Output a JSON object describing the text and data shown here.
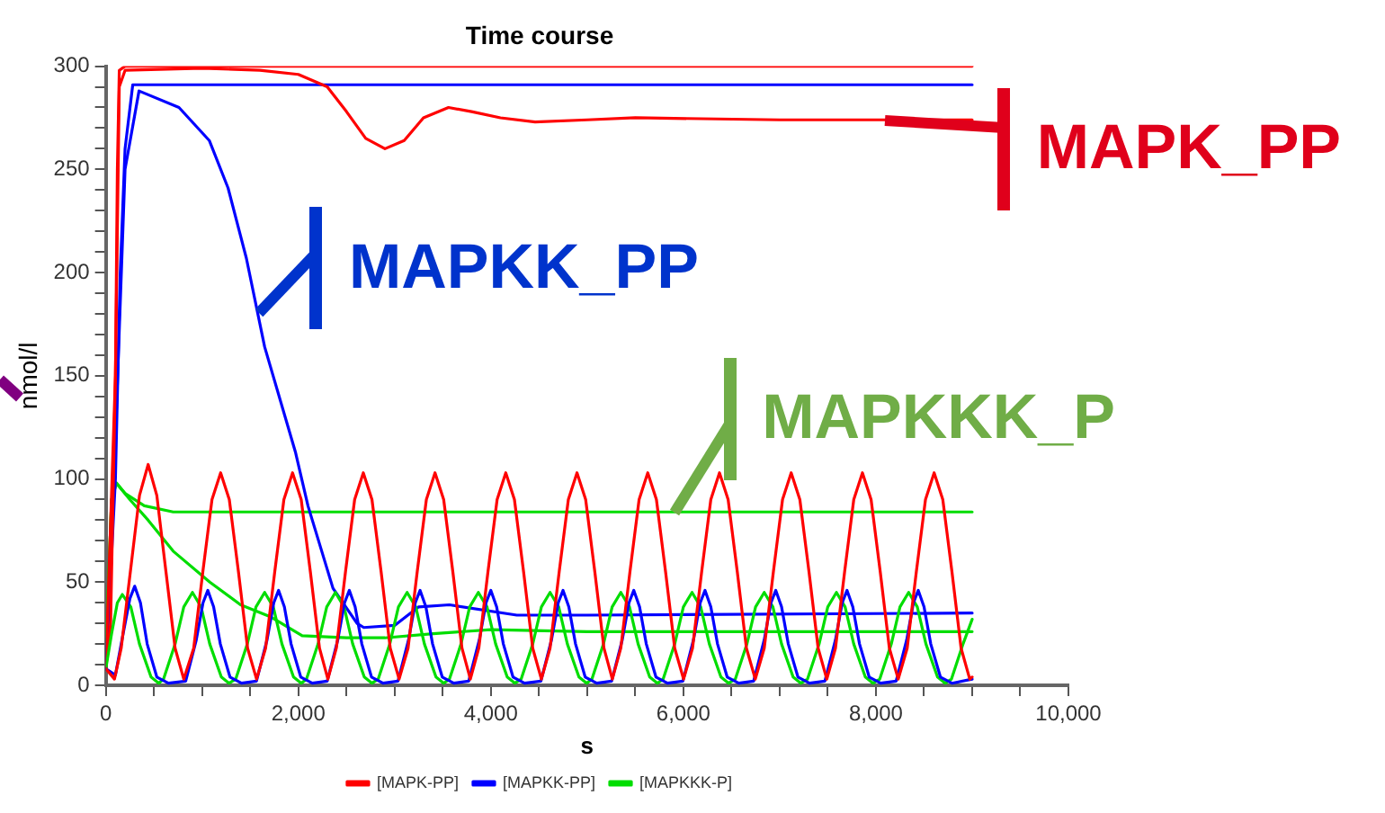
{
  "chart_data": {
    "type": "line",
    "title": "Time course",
    "xlabel": "s",
    "ylabel": "nmol/l",
    "xlim": [
      0,
      10000
    ],
    "xticks": [
      0,
      {
        "value": 500,
        "label": null
      },
      {
        "value": 1000,
        "label": null
      },
      {
        "value": 1500,
        "label": null
      },
      {
        "value": 2000,
        "label": "2,000"
      },
      {
        "value": 2500,
        "label": null
      },
      {
        "value": 3000,
        "label": null
      },
      {
        "value": 3500,
        "label": null
      },
      {
        "value": 4000,
        "label": "4,000"
      },
      {
        "value": 4500,
        "label": null
      },
      {
        "value": 5000,
        "label": null
      },
      {
        "value": 5500,
        "label": null
      },
      {
        "value": 6000,
        "label": "6,000"
      },
      {
        "value": 6500,
        "label": null
      },
      {
        "value": 7000,
        "label": null
      },
      {
        "value": 7500,
        "label": null
      },
      {
        "value": 8000,
        "label": "8,000"
      },
      {
        "value": 8500,
        "label": null
      },
      {
        "value": 9000,
        "label": null
      },
      {
        "value": 9500,
        "label": null
      },
      {
        "value": 10000,
        "label": "10,000"
      }
    ],
    "ylim": [
      0,
      300
    ],
    "yticks": [
      0,
      {
        "value": 10,
        "label": null
      },
      {
        "value": 20,
        "label": null
      },
      {
        "value": 30,
        "label": null
      },
      {
        "value": 40,
        "label": null
      },
      50,
      {
        "value": 60,
        "label": null
      },
      {
        "value": 70,
        "label": null
      },
      {
        "value": 80,
        "label": null
      },
      {
        "value": 90,
        "label": null
      },
      100,
      {
        "value": 110,
        "label": null
      },
      {
        "value": 120,
        "label": null
      },
      {
        "value": 130,
        "label": null
      },
      {
        "value": 140,
        "label": null
      },
      150,
      {
        "value": 160,
        "label": null
      },
      {
        "value": 170,
        "label": null
      },
      {
        "value": 180,
        "label": null
      },
      {
        "value": 190,
        "label": null
      },
      200,
      {
        "value": 210,
        "label": null
      },
      {
        "value": 220,
        "label": null
      },
      {
        "value": 230,
        "label": null
      },
      {
        "value": 240,
        "label": null
      },
      250,
      {
        "value": 260,
        "label": null
      },
      {
        "value": 270,
        "label": null
      },
      {
        "value": 280,
        "label": null
      },
      {
        "value": 290,
        "label": null
      },
      300
    ],
    "legend": "bottom",
    "marker": "none",
    "line_style": "solid",
    "annotations": [
      {
        "text": "MAPK_PP",
        "x": 8100,
        "y": 274
      },
      {
        "text": "MAPKK_PP",
        "x": 1600,
        "y": 180
      },
      {
        "text": "MAPKKK_P",
        "x": 5900,
        "y": 84
      }
    ],
    "series": [
      {
        "name": "[MAPK-PP]",
        "color": "#ff0000",
        "x": [
          0,
          90,
          160,
          255,
          350,
          440,
          530,
          625,
          720,
          810,
          913,
          1008,
          1103,
          1193,
          1283,
          1378,
          1473,
          1566,
          1660,
          1755,
          1850,
          1940,
          2030,
          2125,
          2220,
          2307,
          2395,
          2490,
          2585,
          2675,
          2765,
          2860,
          2955,
          3047,
          3140,
          3235,
          3330,
          3420,
          3510,
          3605,
          3700,
          3787,
          3875,
          3970,
          4065,
          4155,
          4245,
          4340,
          4435,
          4525,
          4615,
          4710,
          4805,
          4895,
          4985,
          5080,
          5175,
          5262,
          5350,
          5445,
          5540,
          5630,
          5720,
          5815,
          5910,
          6002,
          6095,
          6190,
          6285,
          6375,
          6465,
          6560,
          6655,
          6747,
          6840,
          6935,
          7030,
          7120,
          7210,
          7305,
          7400,
          7490,
          7580,
          7675,
          7770,
          7860,
          7950,
          8045,
          8140,
          8232,
          8325,
          8420,
          8515,
          8605,
          8695,
          8790,
          8885,
          8975,
          9000
        ],
        "values": [
          8,
          3,
          18,
          55,
          92,
          107,
          92,
          55,
          18,
          3,
          18,
          55,
          90,
          103,
          90,
          55,
          18,
          3,
          18,
          55,
          90,
          103,
          90,
          55,
          18,
          3,
          18,
          55,
          90,
          103,
          90,
          55,
          18,
          3,
          18,
          55,
          90,
          103,
          90,
          55,
          18,
          3,
          18,
          55,
          90,
          103,
          90,
          55,
          18,
          3,
          18,
          55,
          90,
          103,
          90,
          55,
          18,
          3,
          18,
          55,
          90,
          103,
          90,
          55,
          18,
          3,
          18,
          55,
          90,
          103,
          90,
          55,
          18,
          3,
          18,
          55,
          90,
          103,
          90,
          55,
          18,
          3,
          18,
          55,
          90,
          103,
          90,
          55,
          18,
          3,
          18,
          55,
          90,
          103,
          90,
          55,
          18,
          3,
          4
        ]
      },
      {
        "name": "[MAPKK-PP]",
        "color": "#0000ff",
        "x": [
          0,
          100,
          180,
          250,
          300,
          360,
          430,
          530,
          650,
          830,
          940,
          1010,
          1060,
          1120,
          1190,
          1290,
          1410,
          1565,
          1675,
          1745,
          1795,
          1855,
          1925,
          2025,
          2145,
          2300,
          2410,
          2480,
          2530,
          2590,
          2660,
          2760,
          2880,
          3035,
          3145,
          3215,
          3265,
          3325,
          3395,
          3495,
          3615,
          3770,
          3880,
          3950,
          4000,
          4060,
          4130,
          4230,
          4350,
          4520,
          4630,
          4700,
          4750,
          4810,
          4880,
          4980,
          5100,
          5255,
          5365,
          5435,
          5485,
          5545,
          5615,
          5715,
          5835,
          5995,
          6105,
          6175,
          6225,
          6285,
          6355,
          6455,
          6575,
          6730,
          6840,
          6910,
          6960,
          7020,
          7090,
          7190,
          7310,
          7470,
          7580,
          7650,
          7700,
          7760,
          7830,
          7930,
          8050,
          8210,
          8320,
          8390,
          8440,
          8500,
          8570,
          8670,
          8790,
          9000
        ],
        "values": [
          8,
          5,
          25,
          42,
          48,
          40,
          20,
          4,
          1,
          2,
          22,
          40,
          46,
          38,
          20,
          4,
          1,
          2,
          22,
          40,
          46,
          38,
          20,
          4,
          1,
          2,
          22,
          40,
          46,
          38,
          20,
          4,
          1,
          2,
          22,
          40,
          46,
          38,
          20,
          4,
          1,
          2,
          22,
          40,
          46,
          38,
          20,
          4,
          1,
          2,
          22,
          40,
          46,
          38,
          20,
          4,
          1,
          2,
          22,
          40,
          46,
          38,
          20,
          4,
          1,
          2,
          22,
          40,
          46,
          38,
          20,
          4,
          1,
          2,
          22,
          40,
          46,
          38,
          20,
          4,
          1,
          2,
          22,
          40,
          46,
          38,
          20,
          4,
          1,
          2,
          22,
          40,
          46,
          38,
          20,
          4,
          1,
          3
        ]
      },
      {
        "name": "[MAPKKK-P]",
        "color": "#00dd00",
        "x": [
          0,
          60,
          120,
          172,
          260,
          350,
          470,
          550,
          600,
          720,
          810,
          900,
          990,
          1080,
          1200,
          1280,
          1350,
          1470,
          1560,
          1650,
          1740,
          1830,
          1950,
          2030,
          2085,
          2205,
          2295,
          2385,
          2475,
          2565,
          2685,
          2765,
          2830,
          2950,
          3040,
          3130,
          3220,
          3310,
          3430,
          3510,
          3570,
          3690,
          3780,
          3870,
          3960,
          4050,
          4170,
          4250,
          4315,
          4435,
          4525,
          4615,
          4705,
          4795,
          4915,
          4995,
          5050,
          5170,
          5260,
          5350,
          5440,
          5530,
          5650,
          5730,
          5790,
          5910,
          6000,
          6090,
          6180,
          6270,
          6390,
          6470,
          6540,
          6660,
          6750,
          6840,
          6930,
          7020,
          7140,
          7220,
          7290,
          7410,
          7500,
          7590,
          7680,
          7770,
          7890,
          7970,
          8040,
          8160,
          8250,
          8340,
          8430,
          8520,
          8640,
          8720,
          8785,
          8905,
          9000
        ],
        "values": [
          8,
          25,
          40,
          44,
          38,
          20,
          4,
          1,
          3,
          20,
          38,
          45,
          38,
          20,
          4,
          1,
          3,
          20,
          38,
          45,
          38,
          20,
          4,
          1,
          3,
          20,
          38,
          45,
          38,
          20,
          4,
          1,
          3,
          20,
          38,
          45,
          38,
          20,
          4,
          1,
          3,
          20,
          38,
          45,
          38,
          20,
          4,
          1,
          3,
          20,
          38,
          45,
          38,
          20,
          4,
          1,
          3,
          20,
          38,
          45,
          38,
          20,
          4,
          1,
          3,
          20,
          38,
          45,
          38,
          20,
          4,
          1,
          3,
          20,
          38,
          45,
          38,
          20,
          4,
          1,
          3,
          20,
          38,
          45,
          38,
          20,
          4,
          1,
          3,
          20,
          38,
          45,
          38,
          20,
          4,
          1,
          3,
          20,
          32
        ]
      },
      {
        "color": "#ff0000",
        "x": [
          0,
          50,
          100,
          120,
          140,
          200,
          9000
        ],
        "values": [
          8,
          30,
          150,
          250,
          298,
          300,
          300
        ]
      },
      {
        "color": "#ff0000",
        "x": [
          0,
          100,
          140,
          200,
          1000,
          1600,
          2000,
          2300,
          2500,
          2700,
          2900,
          3100,
          3300,
          3560,
          3800,
          4100,
          4460,
          5000,
          5500,
          7000,
          9000
        ],
        "values": [
          8,
          150,
          290,
          298,
          299,
          298,
          296,
          290,
          278,
          265,
          260,
          264,
          275,
          280,
          278,
          275,
          273,
          274,
          275,
          274,
          274
        ]
      },
      {
        "color": "#0000ff",
        "x": [
          0,
          100,
          150,
          200,
          280,
          9000
        ],
        "values": [
          8,
          100,
          200,
          260,
          291,
          291
        ]
      },
      {
        "color": "#0000ff",
        "x": [
          0,
          100,
          200,
          345,
          760,
          1075,
          1270,
          1460,
          1650,
          1970,
          2100,
          2360,
          2610,
          2680,
          3000,
          3250,
          3570,
          4270,
          5000,
          9000
        ],
        "values": [
          8,
          120,
          250,
          288,
          280,
          264,
          241,
          207,
          164,
          113,
          87,
          47,
          30,
          28,
          29,
          38,
          39,
          34,
          34,
          35
        ]
      },
      {
        "color": "#00dd00",
        "x": [
          0,
          60,
          110,
          200,
          400,
          700,
          9000
        ],
        "values": [
          15,
          90,
          98,
          93,
          87,
          84,
          84
        ]
      },
      {
        "color": "#00dd00",
        "x": [
          0,
          60,
          110,
          250,
          440,
          700,
          1080,
          1400,
          1720,
          2040,
          2500,
          2900,
          3400,
          4000,
          5000,
          9000
        ],
        "values": [
          15,
          90,
          98,
          90,
          80,
          65,
          50,
          39,
          33,
          24,
          23,
          23,
          25,
          27,
          26,
          26
        ]
      }
    ]
  }
}
